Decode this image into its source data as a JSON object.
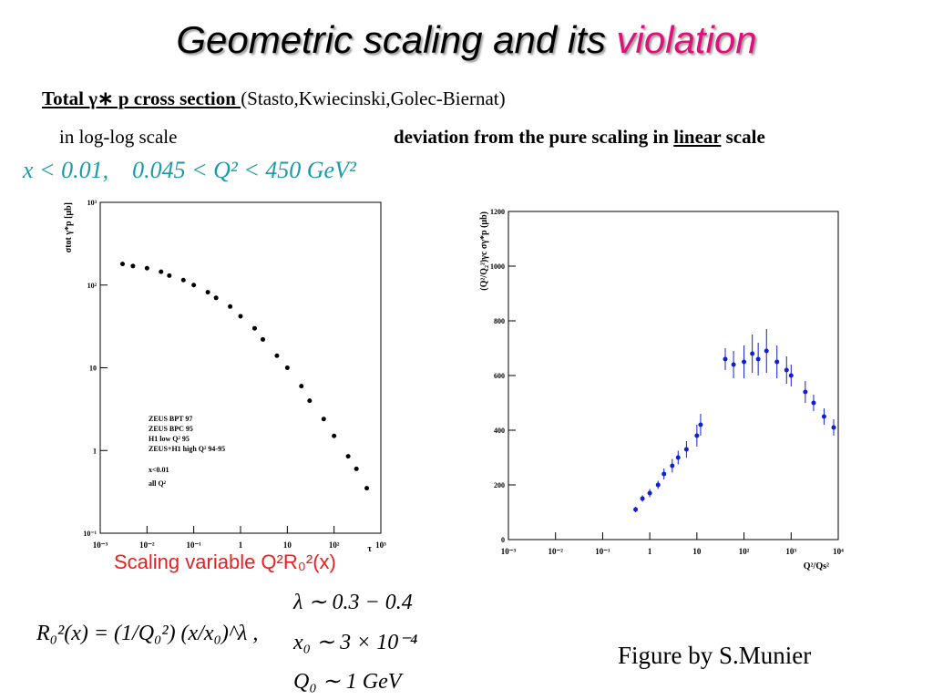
{
  "title": {
    "main": "Geometric scaling and its ",
    "highlight": "violation"
  },
  "subtitle": {
    "bold": "Total γ∗ p cross section ",
    "rest": "(Stasto,Kwiecinski,Golec-Biernat)"
  },
  "left_caption": "in log-log scale",
  "right_caption": {
    "before": "deviation from the pure scaling in ",
    "underlined": "linear",
    "after": " scale"
  },
  "cuts": "x < 0.01,    0.045 < Q² < 450 GeV²",
  "scaling_variable": "Scaling variable Q²R₀²(x)",
  "formulas": {
    "r0": "R₀²(x) = (1/Q₀²) (x/x₀)^λ ,",
    "lambda": "λ ∼ 0.3 − 0.4",
    "x0": "x₀ ∼ 3 × 10⁻⁴",
    "q0": "Q₀ ∼ 1 GeV"
  },
  "credit": "Figure by S.Munier",
  "figures": [
    {
      "ylog": true,
      "ylabel": "σtot γ*p [μb]",
      "xlabel": "τ",
      "xlim": [
        0.001,
        1000
      ],
      "ylim": [
        0.1,
        1000
      ],
      "xticks": [
        {
          "value": 0.001,
          "label": "10⁻³"
        },
        {
          "value": 0.01,
          "label": "10⁻²"
        },
        {
          "value": 0.1,
          "label": "10⁻¹"
        },
        1,
        10,
        {
          "value": 100,
          "label": "10²"
        },
        {
          "value": 1000,
          "label": "10³"
        }
      ],
      "yticks": [
        {
          "value": 0.1,
          "label": "10⁻¹"
        },
        1,
        10,
        {
          "value": 100,
          "label": "10²"
        },
        {
          "value": 1000,
          "label": "10³"
        }
      ],
      "legend": [
        "ZEUS BPT 97",
        "ZEUS BPC 95",
        "H1 low Q² 95",
        "ZEUS+H1 high Q² 94-95",
        "x<0.01",
        "all Q²"
      ],
      "x": [
        0.003,
        0.005,
        0.01,
        0.02,
        0.03,
        0.06,
        0.1,
        0.2,
        0.3,
        0.6,
        1,
        2,
        3,
        6,
        10,
        20,
        30,
        60,
        100,
        200,
        300,
        500
      ],
      "values": [
        180,
        170,
        160,
        145,
        130,
        115,
        100,
        82,
        70,
        55,
        42,
        30,
        22,
        14,
        10,
        6,
        4,
        2.4,
        1.5,
        0.85,
        0.6,
        0.35
      ]
    },
    {
      "ylog": false,
      "ylabel": "(Q²/Q₂²)γc σγ*p (μb)",
      "xlabel": "Q²/Qs²",
      "xlim": [
        0.001,
        10000
      ],
      "ylim": [
        0,
        1200
      ],
      "xticks": [
        {
          "value": 0.001,
          "label": "10⁻³"
        },
        {
          "value": 0.01,
          "label": "10⁻²"
        },
        {
          "value": 0.1,
          "label": "10⁻¹"
        },
        1,
        10,
        {
          "value": 100,
          "label": "10²"
        },
        {
          "value": 1000,
          "label": "10³"
        },
        {
          "value": 10000,
          "label": "10⁴"
        }
      ],
      "yticks": [
        0,
        200,
        400,
        600,
        800,
        1000,
        1200
      ],
      "x": [
        0.5,
        0.7,
        1,
        1.5,
        2,
        3,
        4,
        6,
        10,
        12,
        40,
        60,
        100,
        150,
        200,
        300,
        500,
        800,
        1000,
        2000,
        3000,
        5000,
        8000
      ],
      "values": [
        110,
        150,
        170,
        200,
        240,
        270,
        300,
        330,
        380,
        420,
        660,
        640,
        650,
        680,
        660,
        690,
        650,
        620,
        600,
        540,
        500,
        450,
        410
      ],
      "errors": [
        10,
        12,
        15,
        15,
        20,
        25,
        25,
        30,
        40,
        40,
        40,
        50,
        60,
        70,
        60,
        80,
        60,
        50,
        40,
        40,
        30,
        30,
        30
      ]
    }
  ]
}
